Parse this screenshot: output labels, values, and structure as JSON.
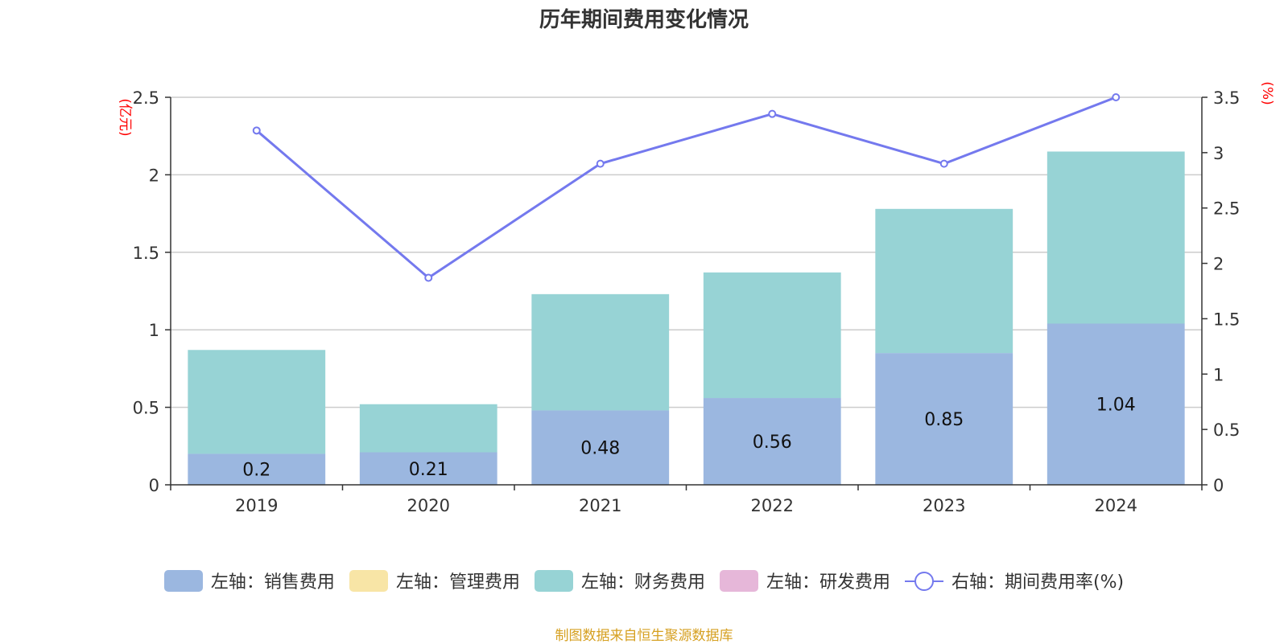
{
  "chart_data": {
    "type": "bar",
    "title": "历年期间费用变化情况",
    "categories": [
      "2019",
      "2020",
      "2021",
      "2022",
      "2023",
      "2024"
    ],
    "left_axis": {
      "unit_label": "(亿元)",
      "ylim": [
        0,
        2.5
      ],
      "ticks": [
        "0",
        "0.5",
        "1",
        "1.5",
        "2",
        "2.5"
      ],
      "tick_values": [
        0,
        0.5,
        1,
        1.5,
        2,
        2.5
      ]
    },
    "right_axis": {
      "unit_label": "(%)",
      "ylim": [
        0,
        3.5
      ],
      "ticks": [
        "0",
        "0.5",
        "1",
        "1.5",
        "2",
        "2.5",
        "3",
        "3.5"
      ],
      "tick_values": [
        0,
        0.5,
        1,
        1.5,
        2,
        2.5,
        3,
        3.5
      ]
    },
    "series": [
      {
        "name": "左轴：销售费用",
        "kind": "bar",
        "axis": "left",
        "color": "#9bb7e0",
        "values": [
          0.2,
          0.21,
          0.48,
          0.56,
          0.85,
          1.04
        ],
        "labels": [
          "0.2",
          "0.21",
          "0.48",
          "0.56",
          "0.85",
          "1.04"
        ]
      },
      {
        "name": "左轴：管理费用",
        "kind": "bar",
        "axis": "left",
        "color": "#f8e5a6",
        "values": [
          0,
          0,
          0,
          0,
          0,
          0
        ]
      },
      {
        "name": "左轴：财务费用",
        "kind": "bar",
        "axis": "left",
        "color": "#97d3d5",
        "values": [
          0.67,
          0.31,
          0.75,
          0.81,
          0.93,
          1.11
        ]
      },
      {
        "name": "左轴：研发费用",
        "kind": "bar",
        "axis": "left",
        "color": "#e6b7d9",
        "values": [
          0,
          0,
          0,
          0,
          0,
          0
        ]
      },
      {
        "name": "右轴：期间费用率(%)",
        "kind": "line",
        "axis": "right",
        "color": "#7479ee",
        "values": [
          3.2,
          1.87,
          2.9,
          3.35,
          2.9,
          3.5
        ]
      }
    ],
    "stacked": true,
    "grid": true,
    "legend_position": "bottom"
  },
  "source_note": "制图数据来自恒生聚源数据库",
  "colors": {
    "axis": "#333333",
    "grid": "#cccccc",
    "unit_label": "#ff0000",
    "title": "#333333",
    "source": "#d6a021"
  }
}
